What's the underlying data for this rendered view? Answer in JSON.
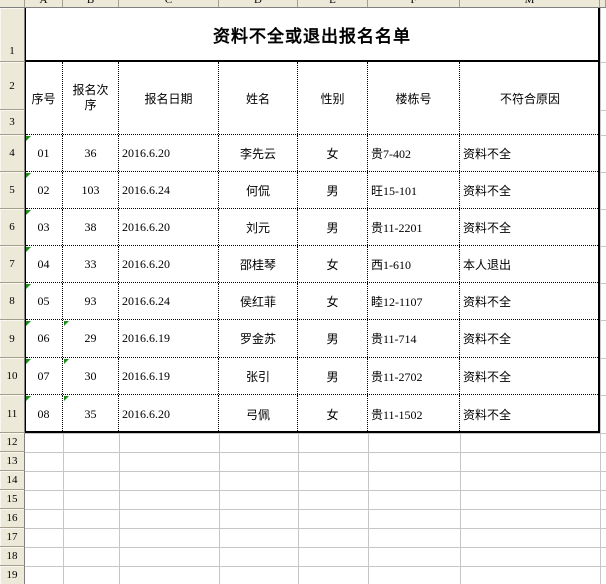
{
  "sheet": {
    "column_letters": [
      "A",
      "B",
      "C",
      "D",
      "E",
      "F",
      "M"
    ],
    "row_numbers": [
      "1",
      "2",
      "3",
      "4",
      "5",
      "6",
      "7",
      "8",
      "9",
      "10",
      "11",
      "12",
      "13",
      "14",
      "15",
      "16",
      "17",
      "18",
      "19"
    ]
  },
  "table": {
    "title": "资料不全或退出报名名单",
    "headers": [
      "序号",
      "报名次序",
      "报名日期",
      "姓名",
      "性别",
      "楼栋号",
      "不符合原因"
    ],
    "rows": [
      {
        "no": "01",
        "order": "36",
        "date": "2016.6.20",
        "name": "李先云",
        "gender": "女",
        "building": "贵7-402",
        "reason": "资料不全",
        "no_flag": true,
        "order_flag": false
      },
      {
        "no": "02",
        "order": "103",
        "date": "2016.6.24",
        "name": "何侃",
        "gender": "男",
        "building": "旺15-101",
        "reason": "资料不全",
        "no_flag": true,
        "order_flag": false
      },
      {
        "no": "03",
        "order": "38",
        "date": "2016.6.20",
        "name": "刘元",
        "gender": "男",
        "building": "贵11-2201",
        "reason": "资料不全",
        "no_flag": true,
        "order_flag": false
      },
      {
        "no": "04",
        "order": "33",
        "date": "2016.6.20",
        "name": "邵桂琴",
        "gender": "女",
        "building": "西1-610",
        "reason": "本人退出",
        "no_flag": true,
        "order_flag": false
      },
      {
        "no": "05",
        "order": "93",
        "date": "2016.6.24",
        "name": "侯红菲",
        "gender": "女",
        "building": "睦12-1107",
        "reason": "资料不全",
        "no_flag": true,
        "order_flag": false
      },
      {
        "no": "06",
        "order": "29",
        "date": "2016.6.19",
        "name": "罗金苏",
        "gender": "男",
        "building": "贵11-714",
        "reason": "资料不全",
        "no_flag": true,
        "order_flag": true
      },
      {
        "no": "07",
        "order": "30",
        "date": "2016.6.19",
        "name": "张引",
        "gender": "男",
        "building": "贵11-2702",
        "reason": "资料不全",
        "no_flag": true,
        "order_flag": true
      },
      {
        "no": "08",
        "order": "35",
        "date": "2016.6.20",
        "name": "弓佩",
        "gender": "女",
        "building": "贵11-1502",
        "reason": "资料不全",
        "no_flag": true,
        "order_flag": true
      }
    ]
  },
  "icons": {
    "error_flag": "green-error-indicator-triangle"
  },
  "colors": {
    "header_strip_bg": "#ece9d8",
    "gridline": "#c6c6c6",
    "table_border": "#000000",
    "error_flag_green": "#1e8c1e"
  }
}
